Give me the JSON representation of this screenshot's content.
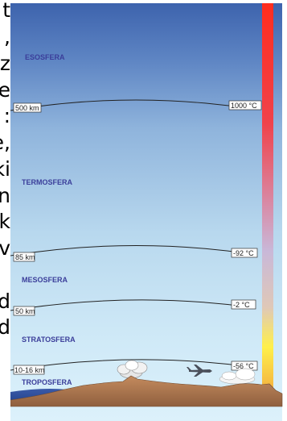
{
  "sidebar_text": [
    "t",
    ",",
    "z",
    "e",
    ":",
    "e,",
    "ki",
    "n",
    "k",
    "v",
    "",
    "d",
    "d"
  ],
  "layers": [
    {
      "name": "ESOSFERA"
    },
    {
      "name": "TERMOSFERA"
    },
    {
      "name": "MESOSFERA"
    },
    {
      "name": "STRATOSFERA"
    },
    {
      "name": "TROPOSFERA"
    }
  ],
  "boundaries": [
    {
      "altitude": "500 km",
      "temperature": "1000 °C"
    },
    {
      "altitude": "85 km",
      "temperature": "-92 °C"
    },
    {
      "altitude": "50 km",
      "temperature": "-2 °C"
    },
    {
      "altitude": "10-16 km",
      "temperature": "-56 °C"
    }
  ],
  "colors": {
    "sky_top": "#3d63ad",
    "sky_bottom": "#d6eefa",
    "label": "#3b3e9a",
    "thermometer_hot": "#ff2d1e",
    "thermometer_mid": "#c9b8d8",
    "thermometer_cold": "#fff04a",
    "ground": "#b07a52"
  },
  "icons": [
    "cloud-icon",
    "airplane-icon",
    "mountain-ground"
  ]
}
